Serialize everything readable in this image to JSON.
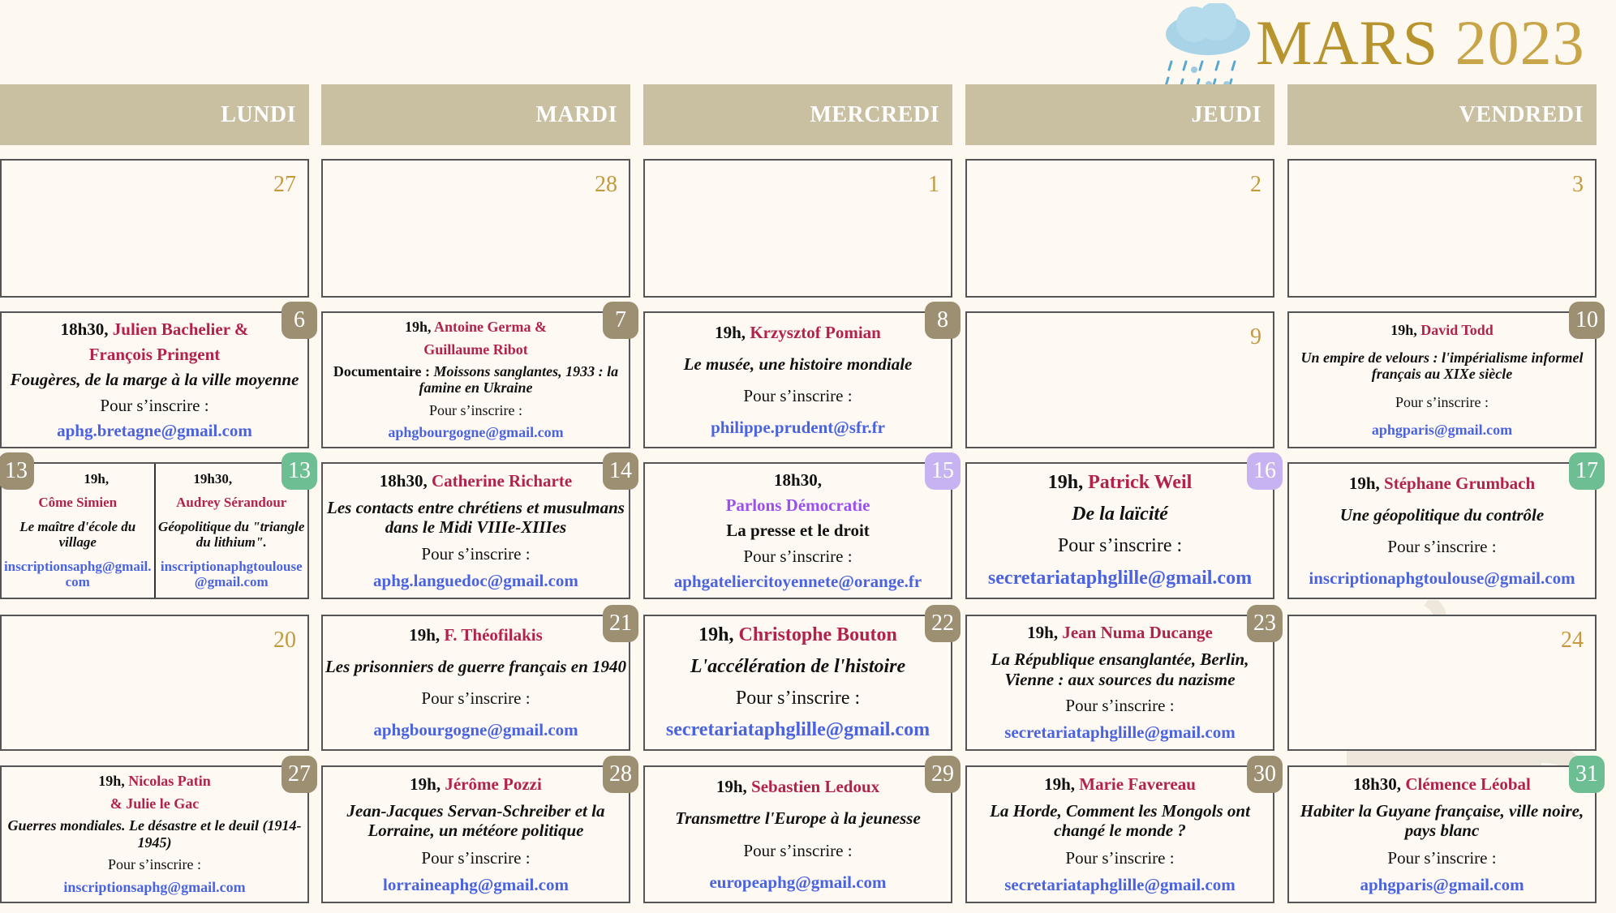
{
  "header": {
    "month": "MARS",
    "year": "2023",
    "weather_icon": "cloud-snow-icon"
  },
  "weekdays": [
    "LUNDI",
    "MARDI",
    "MERCREDI",
    "JEUDI",
    "VENDREDI"
  ],
  "colors": {
    "taupe": "#9c8f72",
    "green": "#6dbf93",
    "lavender": "#c7b3f2",
    "name": "#b3224a",
    "email": "#4a63e0",
    "header_bar": "#c9bfa1",
    "title": "#b8942f"
  },
  "weeks": [
    [
      {
        "day": "27",
        "events": []
      },
      {
        "day": "28",
        "events": []
      },
      {
        "day": "1",
        "events": []
      },
      {
        "day": "2",
        "events": []
      },
      {
        "day": "3",
        "events": []
      }
    ],
    [
      {
        "day": "6",
        "badge": "taupe",
        "events": [
          [
            [
              {
                "s": "t",
                "x": "18h30, "
              },
              {
                "s": "n",
                "x": "Julien Bachelier &"
              }
            ],
            [
              {
                "s": "n",
                "x": "François Pringent"
              }
            ],
            [
              {
                "s": "i",
                "x": "Fougères, de la marge à la ville moyenne"
              }
            ],
            [
              {
                "s": "p",
                "x": "Pour s’inscrire :"
              }
            ],
            [
              {
                "s": "e",
                "x": "aphg.bretagne@gmail.com"
              }
            ]
          ]
        ]
      },
      {
        "day": "7",
        "badge": "taupe",
        "events": [
          [
            [
              {
                "s": "t",
                "x": "19h, "
              },
              {
                "s": "n",
                "x": "Antoine Germa &"
              }
            ],
            [
              {
                "s": "n",
                "x": "Guillaume Ribot"
              }
            ],
            [
              {
                "s": "b",
                "x": "Documentaire : "
              },
              {
                "s": "i",
                "x": "Moissons sanglantes, 1933 : la famine en Ukraine"
              }
            ],
            [
              {
                "s": "p",
                "x": "Pour s’inscrire :"
              }
            ],
            [
              {
                "s": "e",
                "x": "aphgbourgogne@gmail.com"
              }
            ]
          ]
        ]
      },
      {
        "day": "8",
        "badge": "taupe",
        "events": [
          [
            [
              {
                "s": "t",
                "x": "19h, "
              },
              {
                "s": "n",
                "x": "Krzysztof  Pomian"
              }
            ],
            [
              {
                "s": "i",
                "x": "Le musée, une histoire mondiale"
              }
            ],
            [
              {
                "s": "p",
                "x": "Pour s’inscrire :"
              }
            ],
            [
              {
                "s": "e",
                "x": "philippe.prudent@sfr.fr"
              }
            ]
          ]
        ]
      },
      {
        "day": "9",
        "events": []
      },
      {
        "day": "10",
        "badge": "taupe",
        "events": [
          [
            [
              {
                "s": "t",
                "x": "19h, "
              },
              {
                "s": "n",
                "x": "David Todd"
              }
            ],
            [
              {
                "s": "i",
                "x": "Un empire de velours : l'impérialisme informel français au XIXe siècle"
              }
            ],
            [
              {
                "s": "p",
                "x": "Pour s’inscrire :"
              }
            ],
            [
              {
                "s": "e",
                "x": "aphgparis@gmail.com"
              }
            ]
          ]
        ]
      }
    ],
    [
      {
        "day": "13",
        "badge": "green",
        "badge_left": "taupe",
        "events": [
          [
            [
              {
                "s": "t",
                "x": "19h,"
              }
            ],
            [
              {
                "s": "n",
                "x": "Côme Simien"
              }
            ],
            [
              {
                "s": "i",
                "x": "Le maître d'école du village"
              }
            ],
            [
              {
                "s": "e",
                "x": "inscriptionsaphg@gmail.com"
              }
            ]
          ],
          [
            [
              {
                "s": "t",
                "x": "19h30,"
              }
            ],
            [
              {
                "s": "n",
                "x": "Audrey Sérandour"
              }
            ],
            [
              {
                "s": "i",
                "x": "Géopolitique du \"triangle du lithium\"."
              }
            ],
            [
              {
                "s": "e",
                "x": "inscriptionaphgtoulouse@gmail.com"
              }
            ]
          ]
        ]
      },
      {
        "day": "14",
        "badge": "taupe",
        "events": [
          [
            [
              {
                "s": "t",
                "x": "18h30,  "
              },
              {
                "s": "n",
                "x": "Catherine Richarte"
              }
            ],
            [
              {
                "s": "i",
                "x": "Les contacts entre chrétiens et musulmans dans le Midi VIIIe-XIIIes"
              }
            ],
            [
              {
                "s": "p",
                "x": "Pour s’inscrire :"
              }
            ],
            [
              {
                "s": "e",
                "x": "aphg.languedoc@gmail.com"
              }
            ]
          ]
        ]
      },
      {
        "day": "15",
        "badge": "lavender",
        "events": [
          [
            [
              {
                "s": "t",
                "x": "18h30,"
              }
            ],
            [
              {
                "s": "v",
                "x": "Parlons Démocratie"
              }
            ],
            [
              {
                "s": "b",
                "x": "La presse et le droit"
              }
            ],
            [
              {
                "s": "p",
                "x": "Pour s’inscrire :"
              }
            ],
            [
              {
                "s": "e",
                "x": "aphgateliercitoyennete@orange.fr"
              }
            ]
          ]
        ]
      },
      {
        "day": "16",
        "badge": "lavender",
        "events": [
          [
            [
              {
                "s": "t",
                "x": "19h, "
              },
              {
                "s": "n",
                "x": "Patrick Weil"
              }
            ],
            [
              {
                "s": "i",
                "x": "De la laïcité"
              }
            ],
            [
              {
                "s": "p",
                "x": "Pour s’inscrire :"
              }
            ],
            [
              {
                "s": "e",
                "x": "secretariataphglille@gmail.com"
              }
            ]
          ]
        ]
      },
      {
        "day": "17",
        "badge": "green",
        "events": [
          [
            [
              {
                "s": "t",
                "x": "19h, "
              },
              {
                "s": "n",
                "x": "Stéphane Grumbach"
              }
            ],
            [
              {
                "s": "i",
                "x": "Une géopolitique du contrôle"
              }
            ],
            [
              {
                "s": "p",
                "x": "Pour s’inscrire :"
              }
            ],
            [
              {
                "s": "e",
                "x": "inscriptionaphgtoulouse@gmail.com"
              }
            ]
          ]
        ]
      }
    ],
    [
      {
        "day": "20",
        "events": []
      },
      {
        "day": "21",
        "badge": "taupe",
        "events": [
          [
            [
              {
                "s": "t",
                "x": "19h, "
              },
              {
                "s": "n",
                "x": "F. Théofilakis"
              }
            ],
            [
              {
                "s": "i",
                "x": "Les prisonniers de guerre français en 1940"
              }
            ],
            [
              {
                "s": "p",
                "x": "Pour s’inscrire :"
              }
            ],
            [
              {
                "s": "e",
                "x": "aphgbourgogne@gmail.com"
              }
            ]
          ]
        ]
      },
      {
        "day": "22",
        "badge": "taupe",
        "events": [
          [
            [
              {
                "s": "t",
                "x": "19h, "
              },
              {
                "s": "n",
                "x": "Christophe Bouton"
              }
            ],
            [
              {
                "s": "i",
                "x": "L'accélération de l'histoire"
              }
            ],
            [
              {
                "s": "p",
                "x": "Pour s’inscrire :"
              }
            ],
            [
              {
                "s": "e",
                "x": "secretariataphglille@gmail.com"
              }
            ]
          ]
        ]
      },
      {
        "day": "23",
        "badge": "taupe",
        "events": [
          [
            [
              {
                "s": "t",
                "x": "19h, "
              },
              {
                "s": "n",
                "x": "Jean Numa Ducange"
              }
            ],
            [
              {
                "s": "i",
                "x": "La République ensanglantée, Berlin, Vienne : aux sources du nazisme"
              }
            ],
            [
              {
                "s": "p",
                "x": "Pour s’inscrire :"
              }
            ],
            [
              {
                "s": "e",
                "x": "secretariataphglille@gmail.com"
              }
            ]
          ]
        ]
      },
      {
        "day": "24",
        "events": []
      }
    ],
    [
      {
        "day": "27",
        "badge": "taupe",
        "events": [
          [
            [
              {
                "s": "t",
                "x": "19h, "
              },
              {
                "s": "n",
                "x": "Nicolas Patin"
              }
            ],
            [
              {
                "s": "n",
                "x": "& Julie le Gac"
              }
            ],
            [
              {
                "s": "i",
                "x": "Guerres mondiales. Le désastre et le deuil (1914-1945)"
              }
            ],
            [
              {
                "s": "p",
                "x": "Pour s’inscrire :"
              }
            ],
            [
              {
                "s": "e",
                "x": "inscriptionsaphg@gmail.com"
              }
            ]
          ]
        ]
      },
      {
        "day": "28",
        "badge": "taupe",
        "events": [
          [
            [
              {
                "s": "t",
                "x": "19h, "
              },
              {
                "s": "n",
                "x": "Jérôme Pozzi"
              }
            ],
            [
              {
                "s": "i",
                "x": "Jean-Jacques Servan-Schreiber et la Lorraine, un météore politique"
              }
            ],
            [
              {
                "s": "p",
                "x": "Pour s’inscrire :"
              }
            ],
            [
              {
                "s": "e",
                "x": "lorraineaphg@gmail.com"
              }
            ]
          ]
        ]
      },
      {
        "day": "29",
        "badge": "taupe",
        "events": [
          [
            [
              {
                "s": "t",
                "x": "19h, "
              },
              {
                "s": "n",
                "x": "Sebastien Ledoux"
              }
            ],
            [
              {
                "s": "i",
                "x": "Transmettre l'Europe à la jeunesse"
              }
            ],
            [
              {
                "s": "p",
                "x": "Pour s’inscrire :"
              }
            ],
            [
              {
                "s": "e",
                "x": "europeaphg@gmail.com"
              }
            ]
          ]
        ]
      },
      {
        "day": "30",
        "badge": "taupe",
        "events": [
          [
            [
              {
                "s": "t",
                "x": "19h, "
              },
              {
                "s": "n",
                "x": "Marie Favereau"
              }
            ],
            [
              {
                "s": "i",
                "x": "La Horde, Comment les Mongols ont changé le monde ?"
              }
            ],
            [
              {
                "s": "p",
                "x": "Pour s’inscrire :"
              }
            ],
            [
              {
                "s": "e",
                "x": "secretariataphglille@gmail.com"
              }
            ]
          ]
        ]
      },
      {
        "day": "31",
        "badge": "green",
        "events": [
          [
            [
              {
                "s": "t",
                "x": "18h30, "
              },
              {
                "s": "n",
                "x": "Clémence Léobal"
              }
            ],
            [
              {
                "s": "i",
                "x": "Habiter la Guyane française, ville noire, pays blanc"
              }
            ],
            [
              {
                "s": "p",
                "x": "Pour s’inscrire :"
              }
            ],
            [
              {
                "s": "e",
                "x": "aphgparis@gmail.com"
              }
            ]
          ]
        ]
      }
    ]
  ]
}
